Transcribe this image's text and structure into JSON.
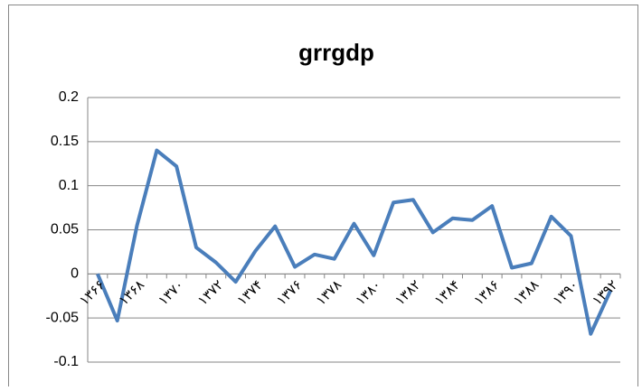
{
  "chart_data": {
    "type": "line",
    "title": "grrgdp",
    "categories": [
      "۱۳۶۶",
      null,
      "۱۳۶۸",
      null,
      "۱۳۷۰",
      null,
      "۱۳۷۲",
      null,
      "۱۳۷۴",
      null,
      "۱۳۷۶",
      null,
      "۱۳۷۸",
      null,
      "۱۳۸۰",
      null,
      "۱۳۸۲",
      null,
      "۱۳۸۴",
      null,
      "۱۳۸۶",
      null,
      "۱۳۸۸",
      null,
      "۱۳۹۰",
      null,
      "۱۳۹۲"
    ],
    "values": [
      0.0,
      -0.053,
      0.055,
      0.14,
      0.122,
      0.03,
      0.013,
      -0.009,
      0.026,
      0.054,
      0.008,
      0.022,
      0.017,
      0.057,
      0.021,
      0.081,
      0.084,
      0.047,
      0.063,
      0.061,
      0.077,
      0.007,
      0.012,
      0.065,
      0.043,
      -0.068,
      -0.019
    ],
    "color": "#4a7ebb",
    "ylim": [
      -0.1,
      0.2
    ],
    "yticks": [
      -0.1,
      -0.05,
      0,
      0.05,
      0.1,
      0.15,
      0.2
    ],
    "grid": true
  }
}
